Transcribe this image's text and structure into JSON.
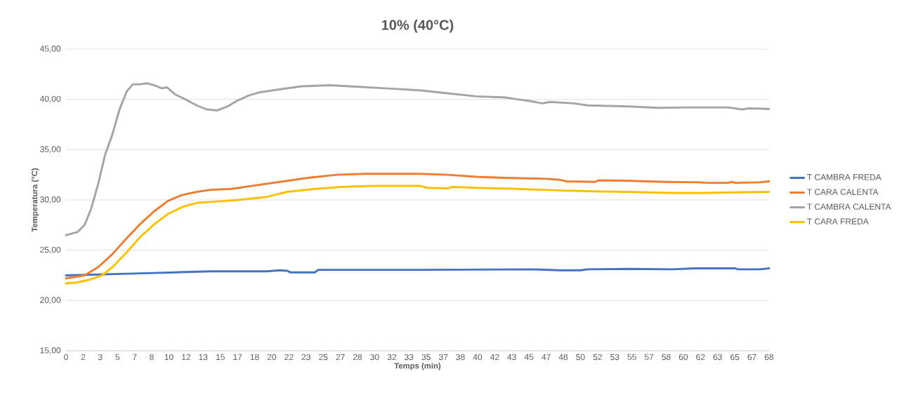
{
  "chart_data": {
    "type": "line",
    "title": "10% (40°C)",
    "xlabel": "Temps (min)",
    "ylabel": "Temperatura (°C)",
    "xlim": [
      0,
      68.33
    ],
    "ylim": [
      15,
      45
    ],
    "xticks": [
      {
        "value": 0,
        "label": "0"
      },
      {
        "value": 1.67,
        "label": "2"
      },
      {
        "value": 3.33,
        "label": "3"
      },
      {
        "value": 5,
        "label": "5"
      },
      {
        "value": 6.67,
        "label": "7"
      },
      {
        "value": 8.33,
        "label": "8"
      },
      {
        "value": 10,
        "label": "10"
      },
      {
        "value": 11.67,
        "label": "12"
      },
      {
        "value": 13.33,
        "label": "13"
      },
      {
        "value": 15,
        "label": "15"
      },
      {
        "value": 16.67,
        "label": "17"
      },
      {
        "value": 18.33,
        "label": "18"
      },
      {
        "value": 20,
        "label": "20"
      },
      {
        "value": 21.67,
        "label": "22"
      },
      {
        "value": 23.33,
        "label": "23"
      },
      {
        "value": 25,
        "label": "25"
      },
      {
        "value": 26.67,
        "label": "27"
      },
      {
        "value": 28.33,
        "label": "28"
      },
      {
        "value": 30,
        "label": "30"
      },
      {
        "value": 31.67,
        "label": "32"
      },
      {
        "value": 33.33,
        "label": "33"
      },
      {
        "value": 35,
        "label": "35"
      },
      {
        "value": 36.67,
        "label": "37"
      },
      {
        "value": 38.33,
        "label": "38"
      },
      {
        "value": 40,
        "label": "40"
      },
      {
        "value": 41.67,
        "label": "42"
      },
      {
        "value": 43.33,
        "label": "43"
      },
      {
        "value": 45,
        "label": "45"
      },
      {
        "value": 46.67,
        "label": "47"
      },
      {
        "value": 48.33,
        "label": "48"
      },
      {
        "value": 50,
        "label": "50"
      },
      {
        "value": 51.67,
        "label": "52"
      },
      {
        "value": 53.33,
        "label": "53"
      },
      {
        "value": 55,
        "label": "55"
      },
      {
        "value": 56.67,
        "label": "57"
      },
      {
        "value": 58.33,
        "label": "58"
      },
      {
        "value": 60,
        "label": "60"
      },
      {
        "value": 61.67,
        "label": "62"
      },
      {
        "value": 63.33,
        "label": "63"
      },
      {
        "value": 65,
        "label": "65"
      },
      {
        "value": 66.67,
        "label": "67"
      },
      {
        "value": 68.33,
        "label": "68"
      }
    ],
    "yticks": [
      {
        "value": 15,
        "label": "15,00"
      },
      {
        "value": 20,
        "label": "20,00"
      },
      {
        "value": 25,
        "label": "25,00"
      },
      {
        "value": 30,
        "label": "30,00"
      },
      {
        "value": 35,
        "label": "35,00"
      },
      {
        "value": 40,
        "label": "40,00"
      },
      {
        "value": 45,
        "label": "45,00"
      }
    ],
    "grid": "y",
    "legend": "right",
    "marker": "none",
    "line_style": "solid",
    "series": [
      {
        "name": "T CAMBRA FREDA",
        "color": "#4472c4",
        "x": [
          0,
          7.2,
          10.6,
          14,
          17.4,
          19.5,
          20.8,
          21.5,
          21.8,
          24.2,
          24.5,
          34.4,
          45.3,
          48,
          50,
          50.7,
          54.8,
          58.9,
          61.1,
          65,
          65.3,
          67.4,
          68.33
        ],
        "values": [
          22.5,
          22.7,
          22.8,
          22.9,
          22.9,
          22.9,
          23,
          22.95,
          22.8,
          22.8,
          23.05,
          23.05,
          23.1,
          23.0,
          23.0,
          23.1,
          23.15,
          23.1,
          23.2,
          23.2,
          23.1,
          23.1,
          23.2
        ]
      },
      {
        "name": "T CARA CALENTA",
        "color": "#ed7d31",
        "x": [
          0,
          1.8,
          3.1,
          4.5,
          5.9,
          7.2,
          8.6,
          9.9,
          11.3,
          12.7,
          14,
          16.1,
          18.1,
          20.8,
          23.5,
          26.3,
          29,
          31.7,
          34.4,
          37.1,
          39.9,
          42.6,
          46.7,
          48,
          48.7,
          51.4,
          51.8,
          54.8,
          58.2,
          61.6,
          62.3,
          64.4,
          64.7,
          65,
          67.4,
          68.33
        ],
        "values": [
          22.2,
          22.5,
          23.3,
          24.6,
          26.2,
          27.6,
          28.9,
          29.9,
          30.5,
          30.8,
          31,
          31.1,
          31.4,
          31.8,
          32.2,
          32.5,
          32.6,
          32.6,
          32.6,
          32.5,
          32.3,
          32.2,
          32.1,
          32.0,
          31.85,
          31.8,
          31.95,
          31.9,
          31.8,
          31.75,
          31.7,
          31.7,
          31.8,
          31.7,
          31.75,
          31.85
        ]
      },
      {
        "name": "T CAMBRA CALENTA",
        "color": "#a5a5a5",
        "x": [
          0,
          1.1,
          1.8,
          2.4,
          3.1,
          3.8,
          4.5,
          5.2,
          5.9,
          6.5,
          7.2,
          7.9,
          8.6,
          9.3,
          9.8,
          10.6,
          11.6,
          12.7,
          13.7,
          14.7,
          15.7,
          16.7,
          17.8,
          18.8,
          20.8,
          22.9,
          25.6,
          27.6,
          31,
          34.4,
          37.1,
          39.9,
          42.6,
          43.9,
          45.3,
          46.3,
          47,
          49.4,
          50.7,
          54.8,
          57.6,
          60.3,
          63,
          64.4,
          65.7,
          66.4,
          68.33
        ],
        "values": [
          26.5,
          26.8,
          27.5,
          29,
          31.5,
          34.5,
          36.5,
          39,
          40.8,
          41.5,
          41.5,
          41.6,
          41.4,
          41.1,
          41.2,
          40.5,
          40,
          39.4,
          39,
          38.9,
          39.3,
          39.9,
          40.4,
          40.7,
          41,
          41.3,
          41.4,
          41.3,
          41.1,
          40.9,
          40.6,
          40.3,
          40.2,
          40,
          39.8,
          39.6,
          39.75,
          39.6,
          39.4,
          39.3,
          39.15,
          39.2,
          39.2,
          39.2,
          39.0,
          39.1,
          39.05
        ]
      },
      {
        "name": "T CARA FREDA",
        "color": "#ffc000",
        "x": [
          0,
          1.1,
          2.4,
          3.5,
          4.5,
          5.9,
          7.2,
          8.6,
          9.9,
          11.3,
          12.7,
          14,
          16.7,
          19.5,
          21.5,
          24.2,
          26.9,
          29.7,
          34.4,
          35.1,
          37.1,
          37.5,
          39.9,
          43.9,
          48,
          51.4,
          54.8,
          58.9,
          62.3,
          64.4,
          68.33
        ],
        "values": [
          21.7,
          21.8,
          22.1,
          22.5,
          23.3,
          24.8,
          26.3,
          27.6,
          28.6,
          29.3,
          29.7,
          29.8,
          30,
          30.3,
          30.8,
          31.1,
          31.3,
          31.4,
          31.4,
          31.2,
          31.15,
          31.3,
          31.2,
          31.1,
          30.95,
          30.85,
          30.8,
          30.7,
          30.7,
          30.75,
          30.8
        ]
      }
    ]
  }
}
